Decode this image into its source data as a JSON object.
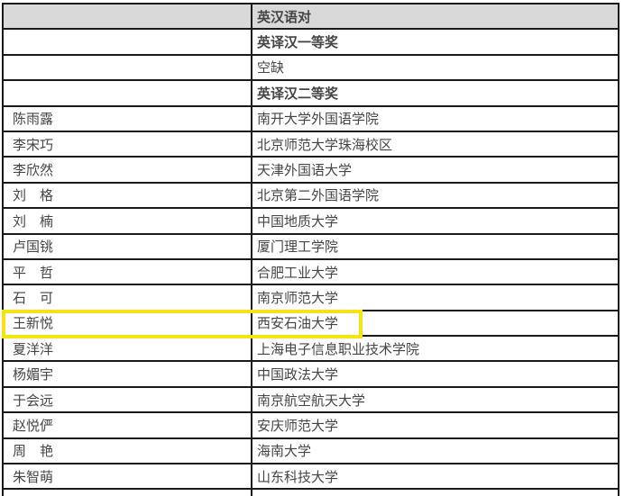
{
  "table": {
    "header": {
      "name_col": "",
      "org_col": "英汉语对"
    },
    "rows": [
      {
        "name": "",
        "org": "英译汉一等奖",
        "bold": true
      },
      {
        "name": "",
        "org": "空缺"
      },
      {
        "name": "",
        "org": "英译汉二等奖",
        "bold": true
      },
      {
        "name": "陈雨露",
        "org": "南开大学外国语学院"
      },
      {
        "name": "李宋巧",
        "org": "北京师范大学珠海校区"
      },
      {
        "name": "李欣然",
        "org": "天津外国语大学"
      },
      {
        "name": "刘　格",
        "org": "北京第二外国语学院"
      },
      {
        "name": "刘　楠",
        "org": "中国地质大学"
      },
      {
        "name": "卢国铫",
        "org": "厦门理工学院"
      },
      {
        "name": "平　哲",
        "org": "合肥工业大学"
      },
      {
        "name": "石　可",
        "org": "南京师范大学"
      },
      {
        "name": "王新悦",
        "org": "西安石油大学",
        "highlighted": true
      },
      {
        "name": "夏洋洋",
        "org": "上海电子信息职业技术学院"
      },
      {
        "name": "杨媚宇",
        "org": "中国政法大学"
      },
      {
        "name": "于会远",
        "org": "南京航空航天大学"
      },
      {
        "name": "赵悦俨",
        "org": "安庆师范大学"
      },
      {
        "name": "周　艳",
        "org": "海南大学"
      },
      {
        "name": "朱智萌",
        "org": "山东科技大学"
      }
    ],
    "colors": {
      "header_bg": "#d9d9d9",
      "border": "#1a1a1a",
      "text": "#454545",
      "highlight": "#f4e316"
    }
  }
}
